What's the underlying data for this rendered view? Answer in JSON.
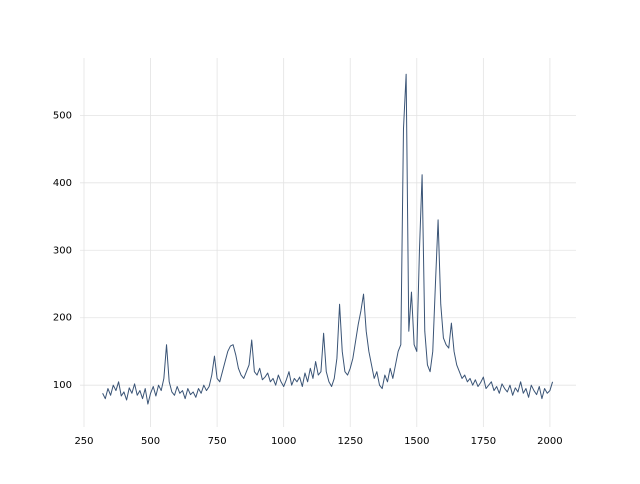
{
  "chart_data": {
    "type": "line",
    "x": [
      320,
      330,
      340,
      350,
      360,
      370,
      380,
      390,
      400,
      410,
      420,
      430,
      440,
      450,
      460,
      470,
      480,
      490,
      500,
      510,
      520,
      530,
      540,
      550,
      560,
      570,
      580,
      590,
      600,
      610,
      620,
      630,
      640,
      650,
      660,
      670,
      680,
      690,
      700,
      710,
      720,
      730,
      740,
      750,
      760,
      770,
      780,
      790,
      800,
      810,
      820,
      830,
      840,
      850,
      860,
      870,
      880,
      890,
      900,
      910,
      920,
      930,
      940,
      950,
      960,
      970,
      980,
      990,
      1000,
      1010,
      1020,
      1030,
      1040,
      1050,
      1060,
      1070,
      1080,
      1090,
      1100,
      1110,
      1120,
      1130,
      1140,
      1150,
      1160,
      1170,
      1180,
      1190,
      1200,
      1210,
      1220,
      1230,
      1240,
      1250,
      1260,
      1270,
      1280,
      1290,
      1300,
      1310,
      1320,
      1330,
      1340,
      1350,
      1360,
      1370,
      1380,
      1390,
      1400,
      1410,
      1420,
      1430,
      1440,
      1450,
      1460,
      1470,
      1480,
      1490,
      1500,
      1510,
      1520,
      1530,
      1540,
      1550,
      1560,
      1570,
      1580,
      1590,
      1600,
      1610,
      1620,
      1630,
      1640,
      1650,
      1660,
      1670,
      1680,
      1690,
      1700,
      1710,
      1720,
      1730,
      1740,
      1750,
      1760,
      1770,
      1780,
      1790,
      1800,
      1810,
      1820,
      1830,
      1840,
      1850,
      1860,
      1870,
      1880,
      1890,
      1900,
      1910,
      1920,
      1930,
      1940,
      1950,
      1960,
      1970,
      1980,
      1990,
      2000,
      2010
    ],
    "series": [
      {
        "color": "#3a5476",
        "values": [
          88,
          80,
          95,
          85,
          100,
          92,
          105,
          84,
          90,
          78,
          96,
          88,
          102,
          85,
          92,
          80,
          95,
          72,
          88,
          98,
          84,
          100,
          92,
          110,
          160,
          105,
          90,
          85,
          98,
          88,
          92,
          80,
          95,
          86,
          90,
          82,
          95,
          88,
          100,
          92,
          98,
          115,
          143,
          110,
          105,
          120,
          135,
          150,
          158,
          160,
          145,
          125,
          115,
          110,
          120,
          130,
          167,
          120,
          115,
          125,
          108,
          112,
          118,
          105,
          110,
          100,
          115,
          105,
          98,
          108,
          120,
          100,
          110,
          105,
          112,
          98,
          118,
          105,
          125,
          110,
          135,
          115,
          120,
          177,
          120,
          105,
          98,
          110,
          140,
          220,
          150,
          120,
          115,
          125,
          140,
          165,
          190,
          210,
          235,
          180,
          150,
          130,
          110,
          120,
          100,
          95,
          115,
          105,
          125,
          110,
          130,
          150,
          160,
          480,
          561,
          180,
          238,
          160,
          150,
          300,
          412,
          180,
          130,
          120,
          150,
          250,
          345,
          220,
          170,
          160,
          155,
          192,
          150,
          130,
          120,
          110,
          115,
          105,
          110,
          100,
          108,
          98,
          104,
          112,
          95,
          100,
          105,
          92,
          98,
          88,
          102,
          95,
          90,
          100,
          85,
          96,
          90,
          105,
          88,
          95,
          82,
          100,
          92,
          86,
          98,
          80,
          95,
          88,
          92,
          105
        ]
      }
    ],
    "xlim": [
      235,
      2098
    ],
    "ylim": [
      38,
      585
    ],
    "xticks": [
      250,
      500,
      750,
      1000,
      1250,
      1500,
      1750,
      2000
    ],
    "yticks": [
      100,
      200,
      300,
      400,
      500
    ],
    "grid": true
  }
}
